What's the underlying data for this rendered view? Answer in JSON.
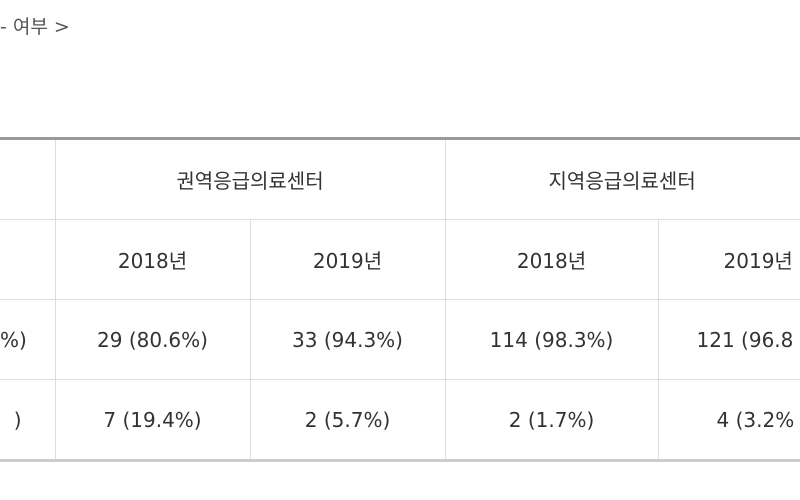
{
  "breadcrumb": "- 여부 >",
  "table": {
    "group_headers": [
      "권역응급의료센터",
      "지역응급의료센터"
    ],
    "years": [
      "2018년",
      "2019년",
      "2018년",
      "2019년"
    ],
    "rows": [
      [
        "%)",
        "29 (80.6%)",
        "33 (94.3%)",
        "114 (98.3%)",
        "121 (96.8"
      ],
      [
        ")",
        "7 (19.4%)",
        "2 (5.7%)",
        "2 (1.7%)",
        "4 (3.2%"
      ]
    ]
  }
}
